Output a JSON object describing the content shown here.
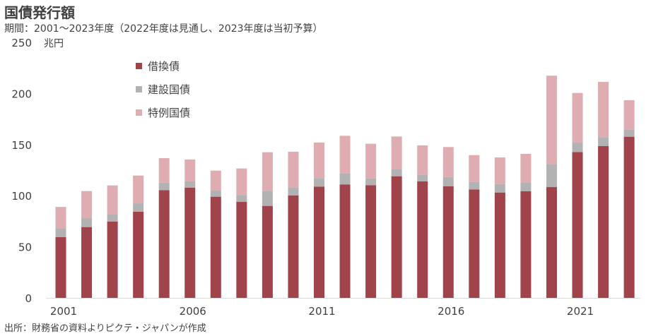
{
  "title": "国債発行額",
  "subtitle": "期間：2001～2023年度（2022年度は見通し、2023年度は当初予算）",
  "unit": "兆円",
  "source": "出所：財務省の資料よりピクテ・ジャパンが作成",
  "colors": {
    "refunding": "#a0434a",
    "construction": "#b2b2b2",
    "deficit": "#dfadb1"
  },
  "chart_data": {
    "type": "bar",
    "stacked": true,
    "title": "国債発行額",
    "ylabel": "兆円",
    "xlabel": "",
    "ylim": [
      0,
      250
    ],
    "yticks": [
      0,
      50,
      100,
      150,
      200,
      250
    ],
    "xtick_labels": [
      "2001",
      "2006",
      "2011",
      "2016",
      "2021"
    ],
    "legend_position": "top-left",
    "categories": [
      "2001",
      "2002",
      "2003",
      "2004",
      "2005",
      "2006",
      "2007",
      "2008",
      "2009",
      "2010",
      "2011",
      "2012",
      "2013",
      "2014",
      "2015",
      "2016",
      "2017",
      "2018",
      "2019",
      "2020",
      "2021",
      "2022",
      "2023"
    ],
    "series": [
      {
        "name": "借換債",
        "values": [
          59.4,
          69.3,
          74.6,
          84.3,
          105.4,
          107.9,
          99.0,
          93.9,
          90.0,
          100.3,
          108.9,
          111.0,
          110.3,
          119.0,
          114.0,
          109.3,
          106.1,
          103.1,
          104.3,
          108.4,
          142.7,
          148.5,
          157.7
        ]
      },
      {
        "name": "建設国債",
        "values": [
          8.3,
          8.7,
          6.9,
          8.2,
          7.4,
          6.3,
          6.0,
          6.7,
          14.8,
          7.9,
          8.3,
          11.0,
          6.6,
          6.7,
          6.2,
          9.0,
          7.4,
          8.3,
          8.7,
          22.6,
          9.2,
          8.8,
          6.7
        ]
      },
      {
        "name": "特例国債",
        "values": [
          21.3,
          26.5,
          28.5,
          27.2,
          23.9,
          21.2,
          19.5,
          26.0,
          37.7,
          34.8,
          34.8,
          36.6,
          33.9,
          32.2,
          29.0,
          29.3,
          26.2,
          26.0,
          27.9,
          86.4,
          48.6,
          54.0,
          29.0
        ]
      }
    ]
  }
}
